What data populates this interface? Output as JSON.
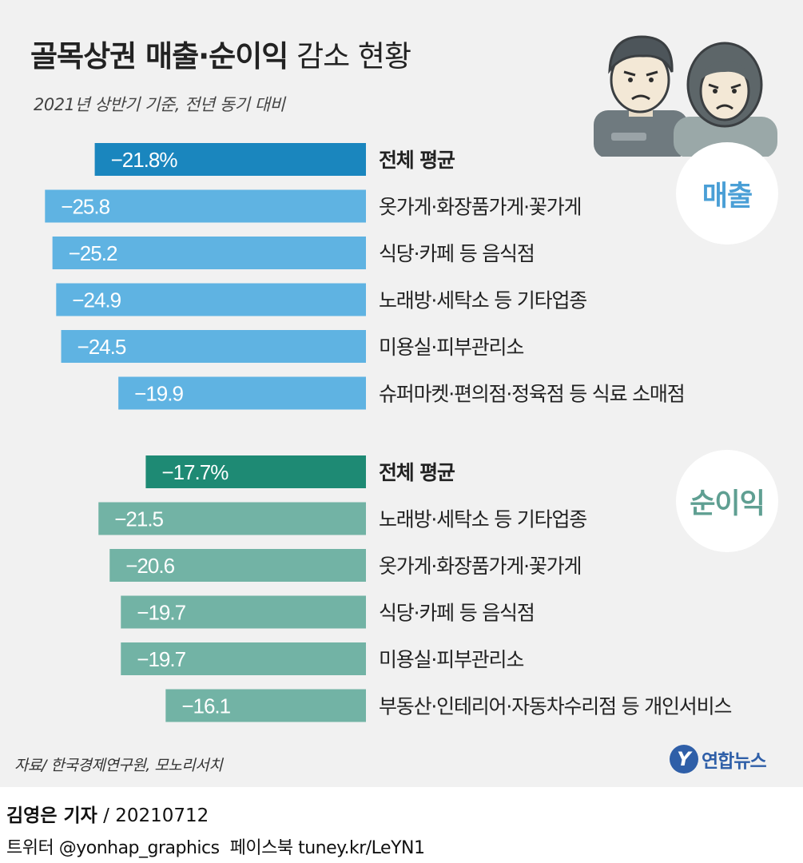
{
  "title": {
    "bold": "골목상권 매출·순이익",
    "rest": "감소 현황"
  },
  "subtitle": "2021년 상반기 기준, 전년 동기 대비",
  "source": "자료/ 한국경제연구원, 모노리서치",
  "logo": {
    "mark": "Y",
    "text": "연합뉴스"
  },
  "byline": {
    "reporter": "김영은 기자",
    "date": "20210712"
  },
  "social": {
    "twitter": "트위터 @yonhap_graphics",
    "facebook": "페이스북 tuney.kr/LeYN1"
  },
  "colors": {
    "sales_avg": "#1a86be",
    "sales_bar": "#5fb3e2",
    "sales_badge_text": "#4a9fd6",
    "profit_avg": "#1e8a74",
    "profit_bar": "#72b3a5",
    "profit_badge_text": "#5f9f92",
    "background": "#f1f1f1"
  },
  "chart_data": [
    {
      "type": "bar",
      "name": "매출",
      "orientation": "horizontal",
      "categories": [
        "전체 평균",
        "옷가게·화장품가게·꽃가게",
        "식당·카페 등 음식점",
        "노래방·세탁소 등 기타업종",
        "미용실·피부관리소",
        "슈퍼마켓·편의점·정육점 등 식료 소매점"
      ],
      "values": [
        -21.8,
        -25.8,
        -25.2,
        -24.9,
        -24.5,
        -19.9
      ],
      "labels": [
        "−21.8%",
        "−25.8",
        "−25.2",
        "−24.9",
        "−24.5",
        "−19.9"
      ],
      "highlight_index": 0,
      "unit": "%"
    },
    {
      "type": "bar",
      "name": "순이익",
      "orientation": "horizontal",
      "categories": [
        "전체 평균",
        "노래방·세탁소 등 기타업종",
        "옷가게·화장품가게·꽃가게",
        "식당·카페 등 음식점",
        "미용실·피부관리소",
        "부동산·인테리어·자동차수리점 등 개인서비스"
      ],
      "values": [
        -17.7,
        -21.5,
        -20.6,
        -19.7,
        -19.7,
        -16.1
      ],
      "labels": [
        "−17.7%",
        "−21.5",
        "−20.6",
        "−19.7",
        "−19.7",
        "−16.1"
      ],
      "highlight_index": 0,
      "unit": "%"
    }
  ]
}
